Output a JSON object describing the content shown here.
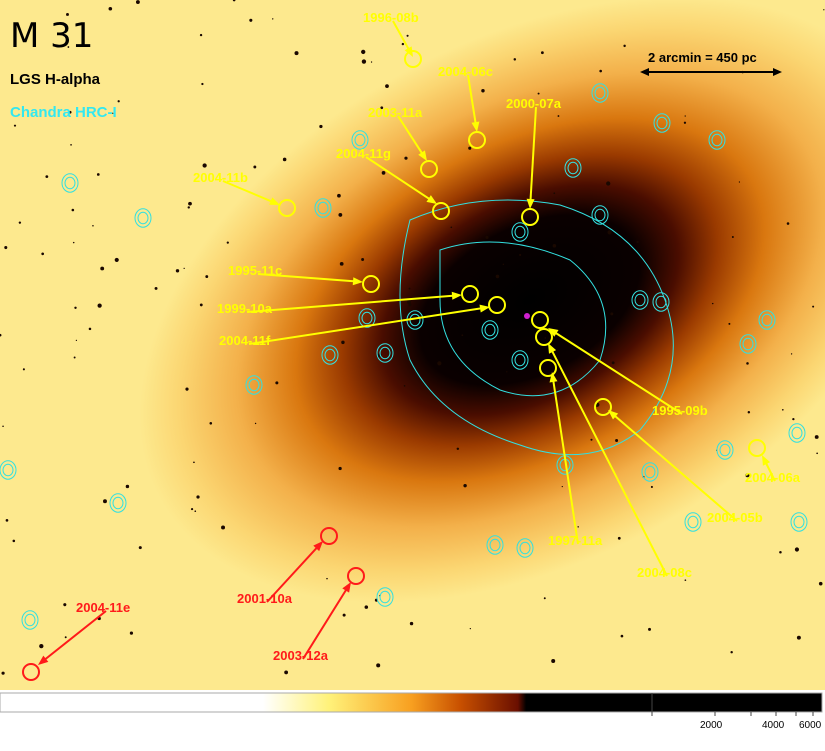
{
  "title": "M 31",
  "legend": {
    "halpha": "LGS H-alpha",
    "xray": "Chandra HRC-I"
  },
  "scale_bar": "2 arcmin = 450 pc",
  "colors": {
    "yellow_markers": "#ffff00",
    "red_markers": "#ff1a1a",
    "contours": "#33e0e0"
  },
  "novae_yellow": [
    "1996-08b",
    "2004-06c",
    "2003-11a",
    "2004-11g",
    "2000-07a",
    "2004-11b",
    "1995-11c",
    "1999-10a",
    "2004-11f",
    "1995-09b",
    "1997-11a",
    "2004-08c",
    "2004-05b",
    "2004-06a"
  ],
  "novae_red": [
    "2001-10a",
    "2003-12a",
    "2004-11e"
  ],
  "colorbar": {
    "ticks": [
      "2000",
      "4000",
      "6000"
    ]
  }
}
